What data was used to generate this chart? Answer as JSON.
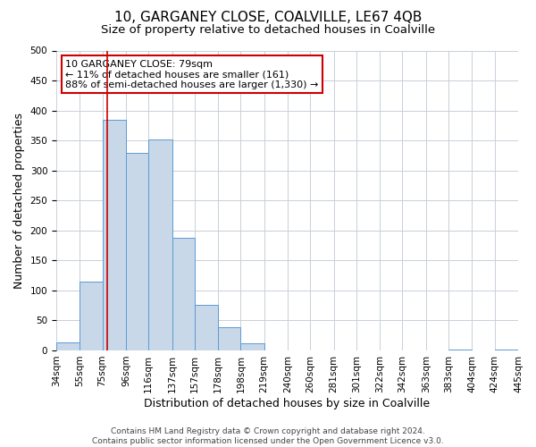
{
  "title": "10, GARGANEY CLOSE, COALVILLE, LE67 4QB",
  "subtitle": "Size of property relative to detached houses in Coalville",
  "xlabel": "Distribution of detached houses by size in Coalville",
  "ylabel": "Number of detached properties",
  "bar_left_edges": [
    34,
    55,
    75,
    96,
    116,
    137,
    157,
    178,
    198,
    219,
    240,
    260,
    281,
    301,
    322,
    342,
    363,
    383,
    404,
    424
  ],
  "bar_widths": [
    21,
    20,
    21,
    20,
    21,
    20,
    21,
    20,
    21,
    21,
    20,
    21,
    20,
    21,
    20,
    21,
    20,
    21,
    20,
    21
  ],
  "bar_heights": [
    13,
    115,
    385,
    330,
    352,
    188,
    76,
    38,
    12,
    0,
    0,
    0,
    0,
    0,
    0,
    0,
    0,
    1,
    0,
    1
  ],
  "tick_labels": [
    "34sqm",
    "55sqm",
    "75sqm",
    "96sqm",
    "116sqm",
    "137sqm",
    "157sqm",
    "178sqm",
    "198sqm",
    "219sqm",
    "240sqm",
    "260sqm",
    "281sqm",
    "301sqm",
    "322sqm",
    "342sqm",
    "363sqm",
    "383sqm",
    "404sqm",
    "424sqm",
    "445sqm"
  ],
  "bar_color": "#c8d8e8",
  "bar_edge_color": "#5b9bd5",
  "vline_x": 79,
  "vline_color": "#cc0000",
  "ylim": [
    0,
    500
  ],
  "yticks": [
    0,
    50,
    100,
    150,
    200,
    250,
    300,
    350,
    400,
    450,
    500
  ],
  "annotation_title": "10 GARGANEY CLOSE: 79sqm",
  "annotation_line1": "← 11% of detached houses are smaller (161)",
  "annotation_line2": "88% of semi-detached houses are larger (1,330) →",
  "annotation_box_color": "#ffffff",
  "annotation_box_edge_color": "#cc0000",
  "footer1": "Contains HM Land Registry data © Crown copyright and database right 2024.",
  "footer2": "Contains public sector information licensed under the Open Government Licence v3.0.",
  "background_color": "#ffffff",
  "grid_color": "#c8d0d8",
  "title_fontsize": 11,
  "subtitle_fontsize": 9.5,
  "axis_label_fontsize": 9,
  "tick_fontsize": 7.5,
  "footer_fontsize": 6.5,
  "annotation_fontsize": 8
}
